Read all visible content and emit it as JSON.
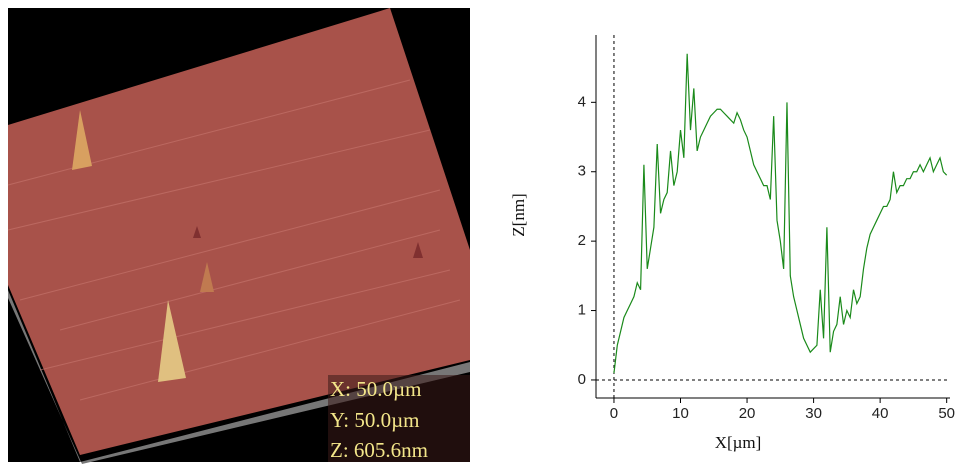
{
  "image_panel": {
    "labels": [
      "X: 50.0µm",
      "Y: 50.0µm",
      "Z: 605.6nm"
    ]
  },
  "chart_data": {
    "type": "line",
    "xlabel": "X[µm]",
    "ylabel": "Z[nm]",
    "color": "#1a8a1a",
    "x": [
      0,
      0.5,
      1,
      1.5,
      2,
      2.5,
      3,
      3.5,
      4,
      4.5,
      5,
      5.5,
      6,
      6.5,
      7,
      7.5,
      8,
      8.5,
      9,
      9.5,
      10,
      10.5,
      11,
      11.5,
      12,
      12.5,
      13,
      13.5,
      14,
      14.5,
      15,
      15.5,
      16,
      16.5,
      17,
      17.5,
      18,
      18.5,
      19,
      19.5,
      20,
      20.5,
      21,
      21.5,
      22,
      22.5,
      23,
      23.5,
      24,
      24.5,
      25,
      25.5,
      26,
      26.5,
      27,
      27.5,
      28,
      28.5,
      29,
      29.5,
      30,
      30.5,
      31,
      31.5,
      32,
      32.5,
      33,
      33.5,
      34,
      34.5,
      35,
      35.5,
      36,
      36.5,
      37,
      37.5,
      38,
      38.5,
      39,
      39.5,
      40,
      40.5,
      41,
      41.5,
      42,
      42.5,
      43,
      43.5,
      44,
      44.5,
      45,
      45.5,
      46,
      46.5,
      47,
      47.5,
      48,
      48.5,
      49,
      49.5,
      50
    ],
    "values": [
      0.1,
      0.5,
      0.7,
      0.9,
      1.0,
      1.1,
      1.2,
      1.4,
      1.3,
      3.1,
      1.6,
      1.9,
      2.2,
      3.4,
      2.4,
      2.6,
      2.7,
      3.3,
      2.8,
      3.0,
      3.6,
      3.2,
      4.7,
      3.6,
      4.2,
      3.3,
      3.5,
      3.6,
      3.7,
      3.8,
      3.85,
      3.9,
      3.9,
      3.85,
      3.8,
      3.75,
      3.7,
      3.85,
      3.75,
      3.6,
      3.5,
      3.3,
      3.1,
      3.0,
      2.9,
      2.8,
      2.8,
      2.6,
      3.8,
      2.3,
      2.0,
      1.6,
      4.0,
      1.5,
      1.2,
      1.0,
      0.8,
      0.6,
      0.5,
      0.4,
      0.45,
      0.5,
      1.3,
      0.6,
      2.2,
      0.4,
      0.7,
      0.8,
      1.2,
      0.8,
      1.0,
      0.9,
      1.3,
      1.1,
      1.2,
      1.6,
      1.9,
      2.1,
      2.2,
      2.3,
      2.4,
      2.5,
      2.5,
      2.6,
      3.0,
      2.7,
      2.8,
      2.8,
      2.9,
      2.9,
      3.0,
      3.0,
      3.1,
      3.0,
      3.1,
      3.2,
      3.0,
      3.1,
      3.2,
      3.0,
      2.95
    ],
    "xlim": [
      -2.7,
      50.5
    ],
    "ylim": [
      -0.26,
      4.97
    ],
    "xticks": [
      0,
      10,
      20,
      30,
      40,
      50
    ],
    "yticks": [
      0,
      1,
      2,
      3,
      4
    ]
  }
}
